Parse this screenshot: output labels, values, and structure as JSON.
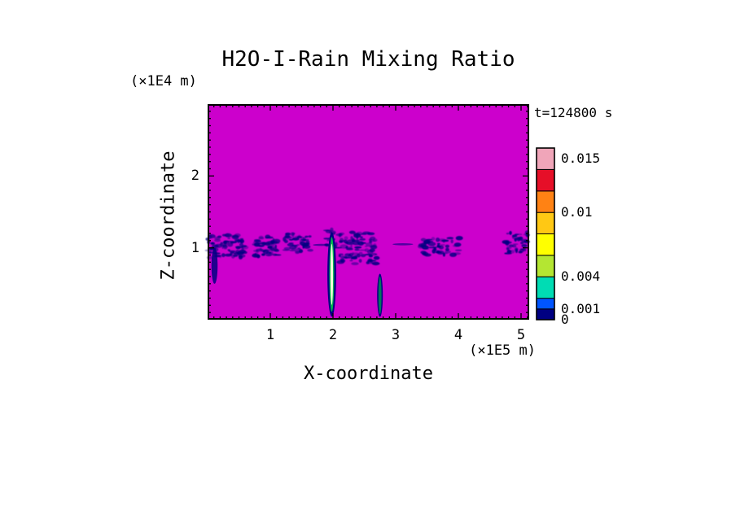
{
  "chart_data": {
    "type": "heatmap",
    "title": "H2O-I-Rain Mixing Ratio",
    "timestamp": "t=124800 s",
    "x_axis": {
      "label": "X-coordinate",
      "unit": "(×1E5 m)",
      "range": [
        0,
        5.13
      ],
      "ticks": [
        1,
        2,
        3,
        4,
        5
      ],
      "minor_step": 0.1
    },
    "z_axis": {
      "label": "Z-coordinate",
      "unit": "(×1E4 m)",
      "range": [
        0,
        3.0
      ],
      "ticks": [
        1,
        2
      ],
      "minor_step": 0.1
    },
    "background_color": "#CC00CC",
    "colorbar": {
      "levels": [
        0,
        0.001,
        0.002,
        0.004,
        0.006,
        0.008,
        0.01,
        0.012,
        0.014,
        0.016
      ],
      "colors": [
        "#000082",
        "#0055FF",
        "#00DCB4",
        "#B4E632",
        "#FFFF00",
        "#FFC814",
        "#FF8214",
        "#E60F28",
        "#F0A5B9"
      ],
      "tick_labels": [
        {
          "value": 0.015,
          "label": "0.015"
        },
        {
          "value": 0.01,
          "label": "0.01"
        },
        {
          "value": 0.004,
          "label": "0.004"
        },
        {
          "value": 0.001,
          "label": "0.001"
        },
        {
          "value": 0,
          "label": "0"
        }
      ]
    },
    "features": [
      {
        "type": "speckles",
        "x0": 0.0,
        "x1": 0.6,
        "z0": 0.86,
        "z1": 1.18,
        "density": 75,
        "color": "#000082",
        "seed": 1
      },
      {
        "type": "plume",
        "x": 0.11,
        "width": 0.1,
        "z_top": 1.0,
        "z_bottom": 0.5,
        "color": "#000082"
      },
      {
        "type": "speckles",
        "x0": 0.72,
        "x1": 1.15,
        "z0": 0.88,
        "z1": 1.16,
        "density": 55,
        "color": "#000082",
        "seed": 2
      },
      {
        "type": "speckles",
        "x0": 1.22,
        "x1": 1.7,
        "z0": 0.92,
        "z1": 1.2,
        "density": 50,
        "color": "#000082",
        "seed": 3
      },
      {
        "type": "dash",
        "x0": 1.68,
        "x1": 1.95,
        "z": 1.04,
        "color": "#000082"
      },
      {
        "type": "speckles",
        "x0": 1.88,
        "x1": 2.1,
        "z0": 1.0,
        "z1": 1.26,
        "density": 20,
        "color": "#000082",
        "seed": 4
      },
      {
        "type": "streak",
        "x": 1.98,
        "width": 0.14,
        "z_top": 1.22,
        "z_bottom": 0.04,
        "layers": [
          "#000082",
          "#00B450",
          "#F2FFD8"
        ]
      },
      {
        "type": "speckles",
        "x0": 2.1,
        "x1": 2.7,
        "z0": 0.78,
        "z1": 1.22,
        "density": 90,
        "color": "#000082",
        "seed": 5
      },
      {
        "type": "dash",
        "x0": 2.95,
        "x1": 3.28,
        "z": 1.05,
        "color": "#000082"
      },
      {
        "type": "streak",
        "x": 2.75,
        "width": 0.09,
        "z_top": 0.64,
        "z_bottom": 0.04,
        "layers": [
          "#000082",
          "#00785A"
        ]
      },
      {
        "type": "speckles",
        "x0": 3.4,
        "x1": 4.05,
        "z0": 0.9,
        "z1": 1.14,
        "density": 50,
        "color": "#000082",
        "seed": 6
      },
      {
        "type": "speckles",
        "x0": 4.75,
        "x1": 5.12,
        "z0": 0.92,
        "z1": 1.22,
        "density": 45,
        "color": "#000082",
        "seed": 7
      }
    ]
  }
}
